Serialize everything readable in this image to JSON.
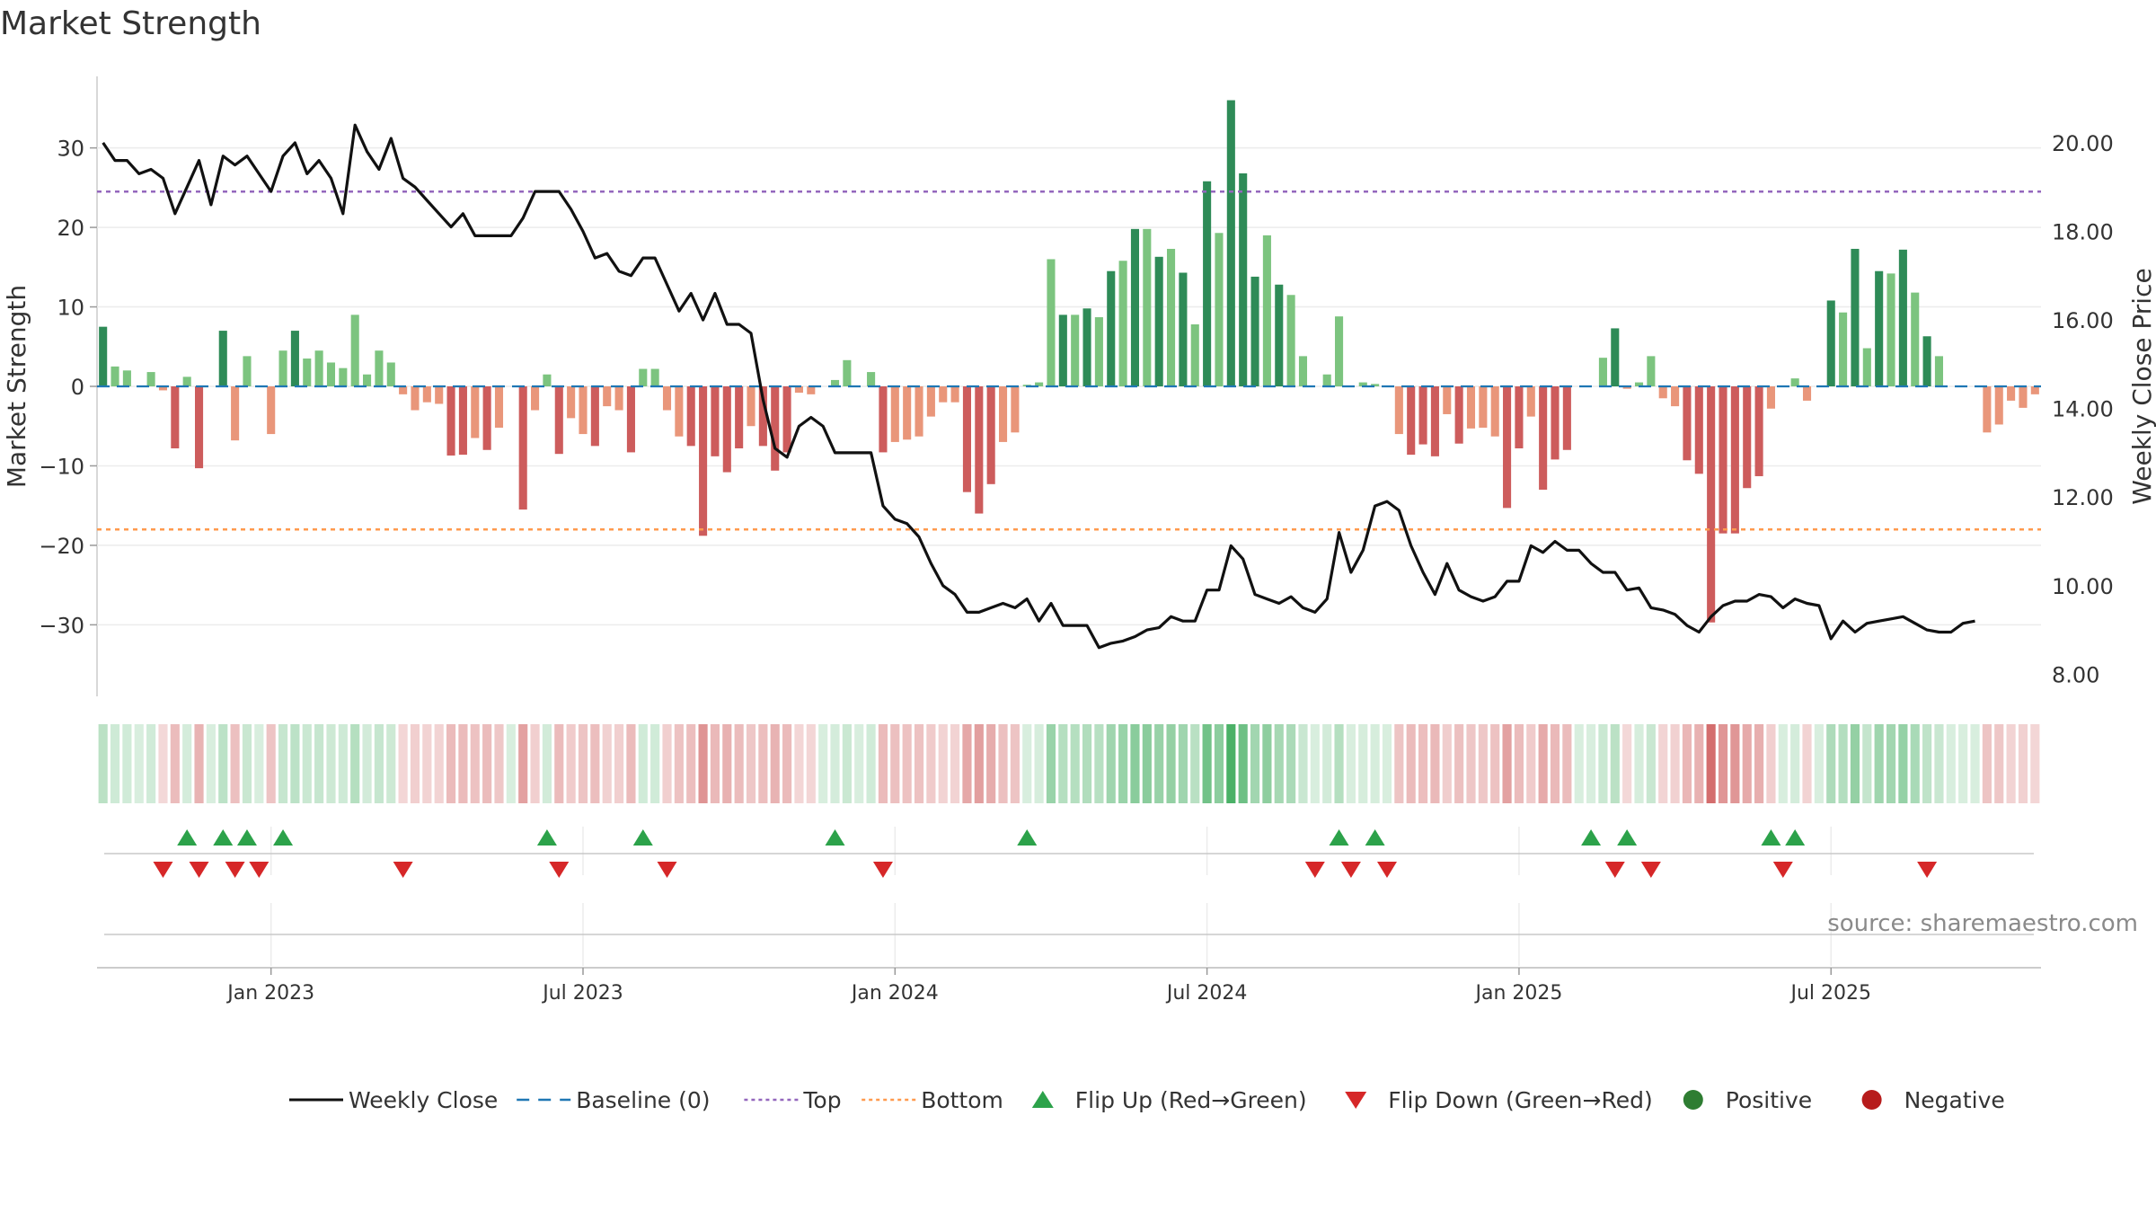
{
  "title": "Market Strength",
  "source": "source: sharemaestro.com",
  "colors": {
    "close_line": "#111111",
    "baseline": "#1f77b4",
    "top": "#9467bd",
    "bottom": "#ff9a4d",
    "flip_up": "#2ca24a",
    "flip_down": "#d62728",
    "positive": "#2e7d32",
    "negative": "#b71c1c",
    "bar_pos_dark": "#2e8b57",
    "bar_pos_light": "#7cc47f",
    "bar_neg_dark": "#cd5c5c",
    "bar_neg_light": "#e9967a"
  },
  "legend": [
    {
      "label": "Weekly Close",
      "kind": "line"
    },
    {
      "label": "Baseline (0)",
      "kind": "dash"
    },
    {
      "label": "Top",
      "kind": "dot-top"
    },
    {
      "label": "Bottom",
      "kind": "dot-bottom"
    },
    {
      "label": "Flip Up (Red→Green)",
      "kind": "tri-up"
    },
    {
      "label": "Flip Down (Green→Red)",
      "kind": "tri-down"
    },
    {
      "label": "Positive",
      "kind": "circle-pos"
    },
    {
      "label": "Negative",
      "kind": "circle-neg"
    }
  ],
  "chart_data": {
    "type": "bar",
    "title": "Market Strength",
    "ylabel_left": "Market Strength",
    "ylabel_right": "Weekly Close Price",
    "ylim_left": [
      -39,
      39
    ],
    "yticks_left": [
      "30",
      "20",
      "10",
      "0",
      "−10",
      "−20",
      "−30"
    ],
    "ylim_right": [
      7.5,
      21.5
    ],
    "yticks_right": [
      "20.00",
      "18.00",
      "16.00",
      "14.00",
      "12.00",
      "10.00",
      "8.00"
    ],
    "xticks": [
      "Jan 2023",
      "Jul 2023",
      "Jan 2024",
      "Jul 2024",
      "Jan 2025",
      "Jul 2025"
    ],
    "top_level": 24.5,
    "bottom_level": -18,
    "baseline": 0,
    "grid": true,
    "legend_position": "bottom",
    "strength": [
      7.5,
      2.5,
      2,
      0,
      1.8,
      -0.5,
      -7.8,
      1.2,
      -10.3,
      0,
      7,
      -6.8,
      3.8,
      0,
      -6,
      4.5,
      7,
      3.5,
      4.5,
      3,
      2.3,
      9,
      1.5,
      4.5,
      3,
      -1,
      -3,
      -2,
      -2.2,
      -8.7,
      -8.6,
      -6.5,
      -8,
      -5.2,
      0,
      -15.5,
      -3,
      1.5,
      -8.5,
      -4,
      -6,
      -7.5,
      -2.5,
      -3,
      -8.3,
      2.2,
      2.2,
      -3,
      -6.3,
      -7.5,
      -18.8,
      -8.8,
      -10.8,
      -7.8,
      -5,
      -7.5,
      -10.6,
      -8.3,
      -0.8,
      -1,
      0,
      0.8,
      3.3,
      0,
      1.8,
      -8.3,
      -7,
      -6.7,
      -6.3,
      -3.8,
      -2,
      -2,
      -13.3,
      -16,
      -12.3,
      -7,
      -5.8,
      0.2,
      0.5,
      16,
      9,
      9,
      9.8,
      8.7,
      14.5,
      15.8,
      19.8,
      19.8,
      16.3,
      17.3,
      14.3,
      7.8,
      25.8,
      19.3,
      36,
      26.8,
      13.8,
      19,
      12.8,
      11.5,
      3.8,
      0,
      1.5,
      8.8,
      0,
      0.5,
      0.3,
      0,
      -6,
      -8.6,
      -7.3,
      -8.8,
      -3.5,
      -7.2,
      -5.3,
      -5.2,
      -6.3,
      -15.3,
      -7.8,
      -3.8,
      -13,
      -9.2,
      -8,
      0,
      0,
      3.6,
      7.3,
      -0.3,
      0.5,
      3.8,
      -1.5,
      -2.5,
      -9.3,
      -11,
      -29.7,
      -18.5,
      -18.5,
      -12.8,
      -11.3,
      -2.8,
      0,
      1,
      -1.8,
      0,
      10.8,
      9.3,
      17.3,
      4.8,
      14.5,
      14.2,
      17.2,
      11.8,
      6.3,
      3.8,
      0,
      0,
      0,
      -5.8,
      -4.8,
      -1.8,
      -2.7,
      -1
    ],
    "weekly_close": [
      20,
      19.6,
      19.6,
      19.3,
      19.4,
      19.2,
      18.4,
      19,
      19.6,
      18.6,
      19.7,
      19.5,
      19.7,
      19.3,
      18.9,
      19.7,
      20,
      19.3,
      19.6,
      19.2,
      18.4,
      20.4,
      19.8,
      19.4,
      20.1,
      19.2,
      19,
      18.7,
      18.4,
      18.1,
      18.4,
      17.9,
      17.9,
      17.9,
      17.9,
      18.3,
      18.9,
      18.9,
      18.9,
      18.5,
      18,
      17.4,
      17.5,
      17.1,
      17,
      17.4,
      17.4,
      16.8,
      16.2,
      16.6,
      16,
      16.6,
      15.9,
      15.9,
      15.7,
      14.2,
      13.1,
      12.9,
      13.6,
      13.8,
      13.6,
      13,
      13,
      13,
      13,
      11.8,
      11.5,
      11.4,
      11.1,
      10.5,
      10,
      9.8,
      9.4,
      9.4,
      9.5,
      9.6,
      9.5,
      9.7,
      9.2,
      9.6,
      9.1,
      9.1,
      9.1,
      8.6,
      8.7,
      8.75,
      8.85,
      9,
      9.05,
      9.3,
      9.2,
      9.2,
      9.9,
      9.9,
      10.9,
      10.6,
      9.8,
      9.7,
      9.6,
      9.75,
      9.5,
      9.4,
      9.7,
      11.2,
      10.3,
      10.8,
      11.8,
      11.9,
      11.7,
      10.9,
      10.3,
      9.8,
      10.5,
      9.9,
      9.75,
      9.65,
      9.75,
      10.1,
      10.1,
      10.9,
      10.75,
      11,
      10.8,
      10.8,
      10.5,
      10.3,
      10.3,
      9.9,
      9.95,
      9.5,
      9.45,
      9.35,
      9.1,
      8.95,
      9.3,
      9.55,
      9.65,
      9.65,
      9.8,
      9.75,
      9.5,
      9.7,
      9.6,
      9.55,
      8.8,
      9.2,
      8.95,
      9.15,
      9.2,
      9.25,
      9.3,
      9.15,
      9,
      8.95,
      8.95,
      9.15,
      9.2
    ],
    "flip_up_weeks": [
      7,
      10,
      12,
      15,
      37,
      45,
      61,
      77,
      103,
      106,
      124,
      127,
      139,
      141
    ],
    "flip_down_weeks": [
      5,
      8,
      11,
      13,
      25,
      38,
      47,
      65,
      101,
      104,
      107,
      126,
      129,
      140,
      152
    ]
  }
}
